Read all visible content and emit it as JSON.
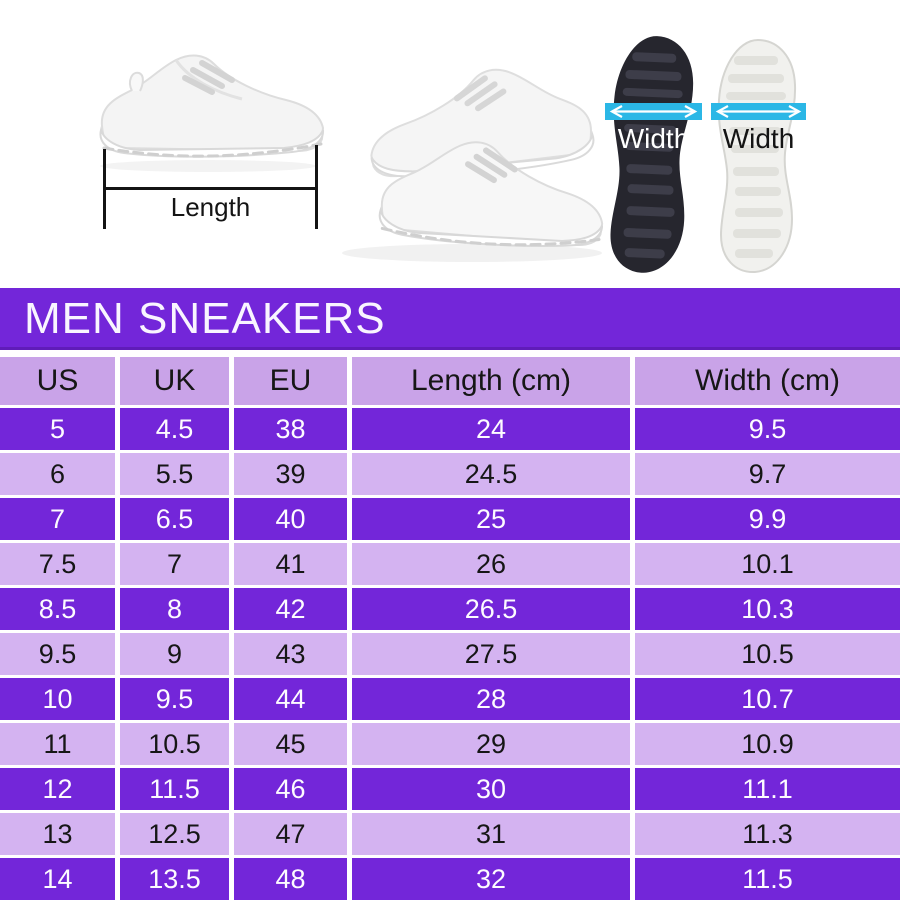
{
  "diagram": {
    "length_label": "Length",
    "width_label_left": "Width",
    "width_label_right": "Width"
  },
  "chart_data": {
    "type": "table",
    "title": "MEN SNEAKERS",
    "columns": [
      "US",
      "UK",
      "EU",
      "Length (cm)",
      "Width (cm)"
    ],
    "rows": [
      [
        "5",
        "4.5",
        "38",
        "24",
        "9.5"
      ],
      [
        "6",
        "5.5",
        "39",
        "24.5",
        "9.7"
      ],
      [
        "7",
        "6.5",
        "40",
        "25",
        "9.9"
      ],
      [
        "7.5",
        "7",
        "41",
        "26",
        "10.1"
      ],
      [
        "8.5",
        "8",
        "42",
        "26.5",
        "10.3"
      ],
      [
        "9.5",
        "9",
        "43",
        "27.5",
        "10.5"
      ],
      [
        "10",
        "9.5",
        "44",
        "28",
        "10.7"
      ],
      [
        "11",
        "10.5",
        "45",
        "29",
        "10.9"
      ],
      [
        "12",
        "11.5",
        "46",
        "30",
        "11.1"
      ],
      [
        "13",
        "12.5",
        "47",
        "31",
        "11.3"
      ],
      [
        "14",
        "13.5",
        "48",
        "32",
        "11.5"
      ]
    ]
  },
  "colors": {
    "banner_bg": "#7326d9",
    "row_dark": "#7326d9",
    "row_light": "#d4b3f1",
    "header_bg": "#c9a3e8",
    "arrow_cyan": "#2bb7e6"
  }
}
